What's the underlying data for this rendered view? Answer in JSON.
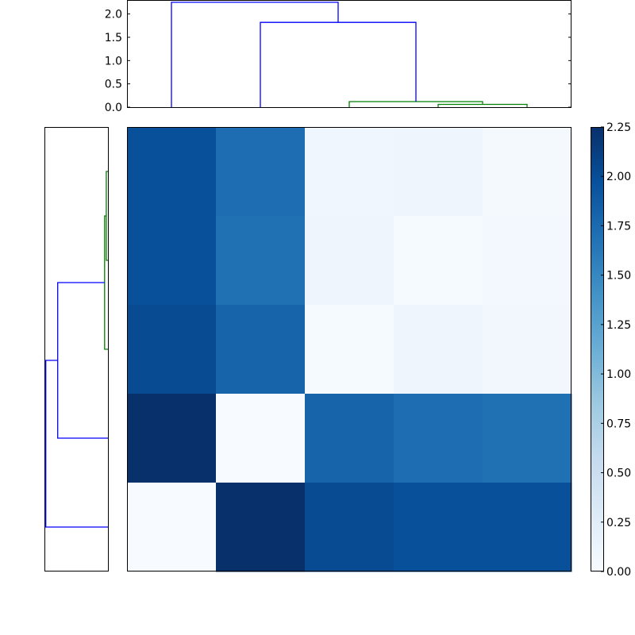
{
  "chart_data": [
    {
      "type": "line",
      "role": "dendrogram-top",
      "orientation": "top",
      "leaf_positions": [
        0,
        1,
        2,
        3,
        4
      ],
      "ylim": [
        0,
        2.3
      ],
      "yticks": [
        0.0,
        0.5,
        1.0,
        1.5,
        2.0
      ],
      "ytick_labels": [
        "0.0",
        "0.5",
        "1.0",
        "1.5",
        "2.0"
      ],
      "links": [
        {
          "x": [
            3,
            3,
            4,
            4
          ],
          "y": [
            0.0,
            0.06,
            0.06,
            0.0
          ],
          "color": "#008000"
        },
        {
          "x": [
            2,
            2,
            3.5,
            3.5
          ],
          "y": [
            0.0,
            0.12,
            0.12,
            0.06
          ],
          "color": "#008000"
        },
        {
          "x": [
            1,
            1,
            2.75,
            2.75
          ],
          "y": [
            0.0,
            1.82,
            1.82,
            0.12
          ],
          "color": "#0000ff"
        },
        {
          "x": [
            0,
            0,
            1.875,
            1.875
          ],
          "y": [
            0.0,
            2.25,
            2.25,
            1.82
          ],
          "color": "#0000ff"
        }
      ]
    },
    {
      "type": "line",
      "role": "dendrogram-left",
      "orientation": "left",
      "leaf_positions": [
        0,
        1,
        2,
        3,
        4
      ],
      "xlim": [
        0,
        2.3
      ],
      "links": [
        {
          "x": [
            0.0,
            0.06,
            0.06,
            0.0
          ],
          "y": [
            0.5,
            0.5,
            1.5,
            1.5
          ],
          "color": "#008000"
        },
        {
          "x": [
            0.0,
            0.12,
            0.12,
            0.06
          ],
          "y": [
            2.5,
            2.5,
            1.0,
            1.0
          ],
          "color": "#008000"
        },
        {
          "x": [
            0.0,
            1.82,
            1.82,
            0.12
          ],
          "y": [
            3.5,
            3.5,
            1.75,
            1.75
          ],
          "color": "#0000ff"
        },
        {
          "x": [
            0.0,
            2.25,
            2.25,
            1.82
          ],
          "y": [
            4.5,
            4.5,
            2.625,
            2.625
          ],
          "color": "#0000ff"
        }
      ]
    },
    {
      "type": "heatmap",
      "role": "distance-matrix",
      "rows": 5,
      "cols": 5,
      "values": [
        [
          1.98,
          1.72,
          0.08,
          0.1,
          0.03
        ],
        [
          1.98,
          1.7,
          0.1,
          0.02,
          0.06
        ],
        [
          2.02,
          1.8,
          0.02,
          0.1,
          0.07
        ],
        [
          2.25,
          0.0,
          1.8,
          1.72,
          1.7
        ],
        [
          0.0,
          2.25,
          2.02,
          1.98,
          1.98
        ]
      ],
      "colormap": "Blues",
      "vmin": 0.0,
      "vmax": 2.25
    },
    {
      "type": "colorbar",
      "role": "colorbar",
      "vmin": 0.0,
      "vmax": 2.25,
      "ticks": [
        0.0,
        0.25,
        0.5,
        0.75,
        1.0,
        1.25,
        1.5,
        1.75,
        2.0,
        2.25
      ],
      "tick_labels": [
        "0.00",
        "0.25",
        "0.50",
        "0.75",
        "1.00",
        "1.25",
        "1.50",
        "1.75",
        "2.00",
        "2.25"
      ]
    }
  ]
}
